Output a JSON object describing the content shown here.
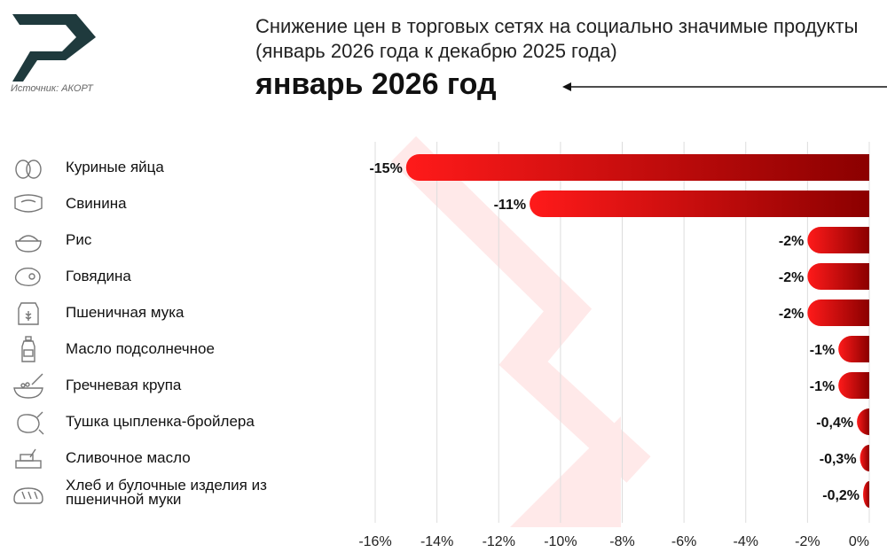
{
  "source": "Источник: АКОРТ",
  "header": {
    "title": "Снижение цен в торговых сетях на социально значимые продукты (январь 2026 года к декабрю 2025 года)",
    "period": "январь 2026 год"
  },
  "icons": [
    "eggs-icon",
    "pork-icon",
    "rice-icon",
    "beef-icon",
    "flour-icon",
    "oil-bottle-icon",
    "buckwheat-icon",
    "chicken-icon",
    "butter-icon",
    "bread-icon"
  ],
  "colors": {
    "bar_light": "#ff1a1a",
    "bar_dark": "#8b0000",
    "watermark_arrow": "#ffe9e9",
    "logo": "#1f3a3d"
  },
  "chart_data": {
    "type": "bar",
    "orientation": "horizontal",
    "categories": [
      "Куриные яйца",
      "Свинина",
      "Рис",
      "Говядина",
      "Пшеничная мука",
      "Масло подсолнечное",
      "Гречневая крупа",
      "Тушка цыпленка-бройлера",
      "Сливочное масло",
      "Хлеб и булочные изделия из пшеничной муки"
    ],
    "values": [
      -15,
      -11,
      -2,
      -2,
      -2,
      -1,
      -1,
      -0.4,
      -0.3,
      -0.2
    ],
    "value_labels": [
      "-15%",
      "-11%",
      "-2%",
      "-2%",
      "-2%",
      "-1%",
      "-1%",
      "-0,4%",
      "-0,3%",
      "-0,2%"
    ],
    "xlim": [
      -16,
      0
    ],
    "x_ticks": [
      -16,
      -14,
      -12,
      -10,
      -8,
      -6,
      -4,
      -2,
      0
    ],
    "x_tick_labels": [
      "-16%",
      "-14%",
      "-12%",
      "-10%",
      "-8%",
      "-6%",
      "-4%",
      "-2%",
      "0%"
    ],
    "grid": true,
    "xlabel": "",
    "ylabel": ""
  }
}
